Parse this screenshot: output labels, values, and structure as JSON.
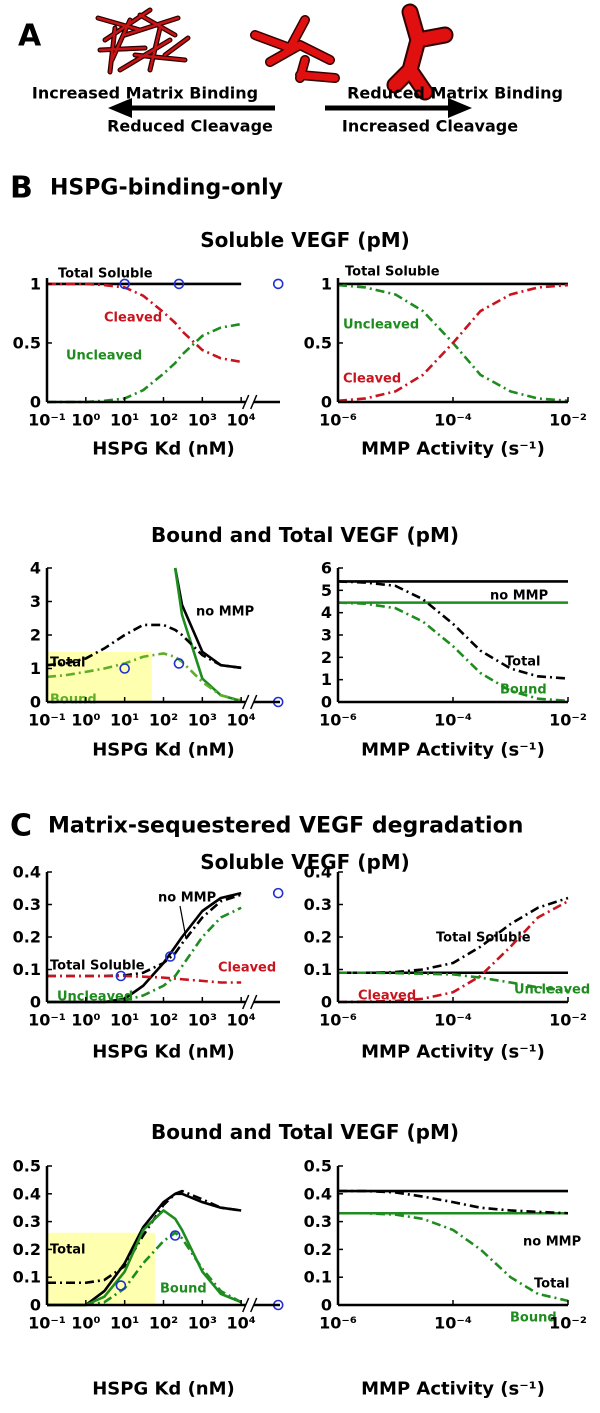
{
  "panel_a": {
    "label": "A",
    "left_top": "Increased Matrix Binding",
    "left_bottom": "Reduced Cleavage",
    "right_top": "Reduced Matrix Binding",
    "right_bottom": "Increased Cleavage"
  },
  "panel_b": {
    "label": "B",
    "title": "HSPG-binding-only",
    "row_titles": [
      "Soluble VEGF (pM)",
      "Bound and Total VEGF (pM)"
    ]
  },
  "panel_c": {
    "label": "C",
    "title": "Matrix-sequestered VEGF degradation",
    "row_titles": [
      "Soluble VEGF (pM)",
      "Bound and Total VEGF (pM)"
    ]
  },
  "chart_data": [
    {
      "type": "line",
      "xlabel": "HSPG Kd (nM)",
      "xscale": "log",
      "x_axis_break": true,
      "xlim": [
        0.1,
        100000
      ],
      "ylim": [
        0,
        1.05
      ],
      "yticks": [
        0,
        0.5,
        1
      ],
      "xticks": [
        {
          "value": 0.1,
          "label": "10⁻¹"
        },
        {
          "value": 1,
          "label": "10⁰"
        },
        {
          "value": 10,
          "label": "10¹"
        },
        {
          "value": 100,
          "label": "10²"
        },
        {
          "value": 1000,
          "label": "10³"
        },
        {
          "value": 10000,
          "label": "10⁴"
        }
      ],
      "x": [
        0.1,
        0.3,
        1,
        3,
        10,
        30,
        100,
        200,
        300,
        1000,
        3000,
        10000,
        30000,
        90000
      ],
      "series": [
        {
          "name": "Total Soluble",
          "color": "#000000",
          "style": "solid",
          "values": [
            1,
            1,
            1,
            1,
            1,
            1,
            1,
            1,
            1,
            1,
            1,
            1,
            null,
            1
          ]
        },
        {
          "name": "Cleaved",
          "color": "#c8141e",
          "style": "dashdot",
          "values": [
            1,
            1,
            1,
            0.99,
            0.97,
            0.9,
            0.76,
            0.67,
            0.6,
            0.44,
            0.37,
            0.34,
            null,
            null
          ]
        },
        {
          "name": "Uncleaved",
          "color": "#1e8c1e",
          "style": "dashdot",
          "values": [
            0,
            0,
            0,
            0.01,
            0.03,
            0.1,
            0.24,
            0.33,
            0.4,
            0.56,
            0.63,
            0.66,
            null,
            null
          ]
        },
        {
          "color": "#2030d0",
          "marker": "circle",
          "x": [
            10,
            250,
            90000
          ],
          "values": [
            1,
            1,
            1
          ]
        }
      ]
    },
    {
      "type": "line",
      "xlabel": "MMP Activity (s⁻¹)",
      "xscale": "log",
      "xlim": [
        1e-06,
        0.01
      ],
      "ylim": [
        0,
        1.05
      ],
      "yticks": [
        0,
        0.5,
        1
      ],
      "xticks": [
        {
          "value": 1e-06,
          "label": "10⁻⁶"
        },
        {
          "value": 0.0001,
          "label": "10⁻⁴"
        },
        {
          "value": 0.01,
          "label": "10⁻²"
        }
      ],
      "x": [
        1e-06,
        3e-06,
        1e-05,
        3e-05,
        0.0001,
        0.0003,
        0.001,
        0.003,
        0.01
      ],
      "series": [
        {
          "name": "Total Soluble",
          "color": "#000000",
          "style": "solid",
          "values": [
            1,
            1,
            1,
            1,
            1,
            1,
            1,
            1,
            1
          ]
        },
        {
          "name": "Uncleaved",
          "color": "#1e8c1e",
          "style": "dashdot",
          "values": [
            0.99,
            0.97,
            0.91,
            0.77,
            0.5,
            0.23,
            0.09,
            0.03,
            0.01
          ]
        },
        {
          "name": "Cleaved",
          "color": "#c8141e",
          "style": "dashdot",
          "values": [
            0.01,
            0.03,
            0.09,
            0.23,
            0.5,
            0.77,
            0.91,
            0.97,
            0.99
          ]
        }
      ]
    },
    {
      "type": "line",
      "xlabel": "HSPG Kd (nM)",
      "xscale": "log",
      "x_axis_break": true,
      "xlim": [
        0.1,
        100000
      ],
      "ylim": [
        0,
        4
      ],
      "yticks": [
        0,
        1,
        2,
        3,
        4
      ],
      "xticks": [
        {
          "value": 0.1,
          "label": "10⁻¹"
        },
        {
          "value": 1,
          "label": "10⁰"
        },
        {
          "value": 10,
          "label": "10¹"
        },
        {
          "value": 100,
          "label": "10²"
        },
        {
          "value": 1000,
          "label": "10³"
        },
        {
          "value": 10000,
          "label": "10⁴"
        }
      ],
      "highlight": {
        "x": [
          0.1,
          50
        ],
        "y": [
          0,
          1.5
        ],
        "color": "#ffffb0"
      },
      "x": [
        0.1,
        0.3,
        1,
        3,
        10,
        30,
        100,
        200,
        300,
        1000,
        3000,
        10000,
        30000,
        90000
      ],
      "series": [
        {
          "name": "no MMP",
          "color": "#000000",
          "style": "solid",
          "values": [
            null,
            null,
            null,
            null,
            null,
            null,
            null,
            4,
            2.9,
            1.5,
            1.1,
            1.02,
            null,
            null
          ]
        },
        {
          "color": "#1e8c1e",
          "style": "solid",
          "values": [
            null,
            null,
            null,
            null,
            null,
            null,
            null,
            4,
            2.6,
            0.7,
            0.2,
            0.03,
            null,
            null
          ]
        },
        {
          "name": "Total",
          "color": "#000000",
          "style": "dashdot",
          "values": [
            1.1,
            1.15,
            1.3,
            1.6,
            2,
            2.3,
            2.3,
            2.15,
            2,
            1.4,
            1.1,
            1.02,
            null,
            1
          ]
        },
        {
          "name": "Bound",
          "color": "#5fae28",
          "style": "dashdot",
          "values": [
            0.75,
            0.8,
            0.9,
            1,
            1.15,
            1.35,
            1.45,
            1.35,
            1.2,
            0.6,
            0.2,
            0.05,
            null,
            0
          ]
        },
        {
          "color": "#2030d0",
          "marker": "circle",
          "x": [
            10,
            250,
            90000
          ],
          "values": [
            1,
            1.15,
            0
          ]
        }
      ]
    },
    {
      "type": "line",
      "xlabel": "MMP Activity (s⁻¹)",
      "xscale": "log",
      "xlim": [
        1e-06,
        0.01
      ],
      "ylim": [
        0,
        6
      ],
      "yticks": [
        0,
        1,
        2,
        3,
        4,
        5,
        6
      ],
      "xticks": [
        {
          "value": 1e-06,
          "label": "10⁻⁶"
        },
        {
          "value": 0.0001,
          "label": "10⁻⁴"
        },
        {
          "value": 0.01,
          "label": "10⁻²"
        }
      ],
      "x": [
        1e-06,
        3e-06,
        1e-05,
        3e-05,
        0.0001,
        0.0003,
        0.001,
        0.003,
        0.01
      ],
      "series": [
        {
          "name": "no MMP",
          "color": "#000000",
          "style": "solid",
          "values": [
            5.4,
            5.4,
            5.4,
            5.4,
            5.4,
            5.4,
            5.4,
            5.4,
            5.4
          ]
        },
        {
          "color": "#1e8c1e",
          "style": "solid",
          "values": [
            4.45,
            4.45,
            4.45,
            4.45,
            4.45,
            4.45,
            4.45,
            4.45,
            4.45
          ]
        },
        {
          "name": "Total",
          "color": "#000000",
          "style": "dashdot",
          "values": [
            5.4,
            5.35,
            5.2,
            4.6,
            3.5,
            2.3,
            1.5,
            1.15,
            1.05
          ]
        },
        {
          "name": "Bound",
          "color": "#1e8c1e",
          "style": "dashdot",
          "values": [
            4.45,
            4.4,
            4.2,
            3.6,
            2.5,
            1.3,
            0.5,
            0.15,
            0.05
          ]
        }
      ]
    },
    {
      "type": "line",
      "xlabel": "HSPG Kd (nM)",
      "xscale": "log",
      "x_axis_break": true,
      "xlim": [
        0.1,
        100000
      ],
      "ylim": [
        0,
        0.4
      ],
      "yticks": [
        0,
        0.1,
        0.2,
        0.3,
        0.4
      ],
      "xticks": [
        {
          "value": 0.1,
          "label": "10⁻¹"
        },
        {
          "value": 1,
          "label": "10⁰"
        },
        {
          "value": 10,
          "label": "10¹"
        },
        {
          "value": 100,
          "label": "10²"
        },
        {
          "value": 1000,
          "label": "10³"
        },
        {
          "value": 10000,
          "label": "10⁴"
        }
      ],
      "x": [
        0.1,
        0.3,
        1,
        3,
        10,
        30,
        100,
        200,
        300,
        1000,
        3000,
        10000,
        30000,
        90000
      ],
      "series": [
        {
          "name": "no MMP",
          "color": "#000000",
          "style": "solid",
          "values": [
            0,
            0,
            0,
            0,
            0.01,
            0.05,
            0.12,
            0.17,
            0.2,
            0.28,
            0.32,
            0.335,
            null,
            0.335
          ]
        },
        {
          "name": "Total Soluble",
          "color": "#000000",
          "style": "dashdot",
          "values": [
            0.08,
            0.08,
            0.08,
            0.08,
            0.082,
            0.09,
            0.12,
            0.15,
            0.18,
            0.26,
            0.31,
            0.33,
            null,
            null
          ]
        },
        {
          "name": "Cleaved",
          "color": "#c8141e",
          "style": "dashdot",
          "values": [
            0.08,
            0.08,
            0.08,
            0.08,
            0.08,
            0.078,
            0.075,
            0.072,
            0.07,
            0.065,
            0.06,
            0.06,
            null,
            null
          ]
        },
        {
          "name": "Uncleaved",
          "color": "#1e8c1e",
          "style": "dashdot",
          "values": [
            0,
            0,
            0,
            0,
            0.005,
            0.02,
            0.05,
            0.08,
            0.11,
            0.2,
            0.26,
            0.29,
            null,
            0.295
          ]
        },
        {
          "color": "#2030d0",
          "marker": "circle",
          "x": [
            8,
            150,
            90000
          ],
          "values": [
            0.08,
            0.14,
            0.335
          ]
        }
      ]
    },
    {
      "type": "line",
      "xlabel": "MMP Activity (s⁻¹)",
      "xscale": "log",
      "xlim": [
        1e-06,
        0.01
      ],
      "ylim": [
        0,
        0.4
      ],
      "yticks": [
        0,
        0.1,
        0.2,
        0.3,
        0.4
      ],
      "xticks": [
        {
          "value": 1e-06,
          "label": "10⁻⁶"
        },
        {
          "value": 0.0001,
          "label": "10⁻⁴"
        },
        {
          "value": 0.01,
          "label": "10⁻²"
        }
      ],
      "x": [
        1e-06,
        3e-06,
        1e-05,
        3e-05,
        0.0001,
        0.0003,
        0.001,
        0.003,
        0.01
      ],
      "series": [
        {
          "color": "#000000",
          "style": "solid",
          "values": [
            0.09,
            0.09,
            0.09,
            0.09,
            0.09,
            0.09,
            0.09,
            0.09,
            0.09
          ]
        },
        {
          "name": "Total Soluble",
          "color": "#000000",
          "style": "dashdot",
          "values": [
            0.09,
            0.09,
            0.092,
            0.1,
            0.12,
            0.17,
            0.24,
            0.29,
            0.32
          ]
        },
        {
          "name": "Cleaved",
          "color": "#c8141e",
          "style": "dashdot",
          "values": [
            0,
            0.001,
            0.003,
            0.01,
            0.03,
            0.08,
            0.17,
            0.26,
            0.31
          ]
        },
        {
          "name": "Uncleaved",
          "color": "#1e8c1e",
          "style": "dashdot",
          "values": [
            0.09,
            0.09,
            0.089,
            0.087,
            0.085,
            0.075,
            0.06,
            0.045,
            0.035
          ]
        }
      ]
    },
    {
      "type": "line",
      "xlabel": "HSPG Kd (nM)",
      "xscale": "log",
      "x_axis_break": true,
      "xlim": [
        0.1,
        100000
      ],
      "ylim": [
        0,
        0.5
      ],
      "yticks": [
        0,
        0.1,
        0.2,
        0.3,
        0.4,
        0.5
      ],
      "xticks": [
        {
          "value": 0.1,
          "label": "10⁻¹"
        },
        {
          "value": 1,
          "label": "10⁰"
        },
        {
          "value": 10,
          "label": "10¹"
        },
        {
          "value": 100,
          "label": "10²"
        },
        {
          "value": 1000,
          "label": "10³"
        },
        {
          "value": 10000,
          "label": "10⁴"
        }
      ],
      "highlight": {
        "x": [
          0.1,
          60
        ],
        "y": [
          0,
          0.26
        ],
        "color": "#ffffb0"
      },
      "x": [
        0.1,
        0.3,
        1,
        3,
        10,
        30,
        100,
        200,
        300,
        1000,
        3000,
        10000,
        30000,
        90000
      ],
      "series": [
        {
          "color": "#000000",
          "style": "solid",
          "values": [
            0,
            0,
            0,
            0.05,
            0.15,
            0.28,
            0.37,
            0.4,
            0.4,
            0.37,
            0.35,
            0.34,
            null,
            0.34
          ]
        },
        {
          "name": "Total",
          "color": "#000000",
          "style": "dashdot",
          "values": [
            0.08,
            0.08,
            0.08,
            0.09,
            0.14,
            0.25,
            0.36,
            0.4,
            0.41,
            0.38,
            0.35,
            0.34,
            null,
            null
          ]
        },
        {
          "color": "#1e8c1e",
          "style": "solid",
          "values": [
            0,
            0,
            0,
            0.03,
            0.12,
            0.27,
            0.34,
            0.31,
            0.27,
            0.12,
            0.04,
            0.01,
            null,
            0
          ]
        },
        {
          "name": "Bound",
          "color": "#1e8c1e",
          "style": "dashdot",
          "values": [
            0,
            0,
            0,
            0.01,
            0.06,
            0.15,
            0.23,
            0.26,
            0.24,
            0.13,
            0.05,
            0.01,
            null,
            0
          ]
        },
        {
          "color": "#2030d0",
          "marker": "circle",
          "x": [
            8,
            200,
            90000
          ],
          "values": [
            0.07,
            0.25,
            0
          ]
        }
      ]
    },
    {
      "type": "line",
      "xlabel": "MMP Activity (s⁻¹)",
      "xscale": "log",
      "xlim": [
        1e-06,
        0.01
      ],
      "ylim": [
        0,
        0.5
      ],
      "yticks": [
        0,
        0.1,
        0.2,
        0.3,
        0.4,
        0.5
      ],
      "xticks": [
        {
          "value": 1e-06,
          "label": "10⁻⁶"
        },
        {
          "value": 0.0001,
          "label": "10⁻⁴"
        },
        {
          "value": 0.01,
          "label": "10⁻²"
        }
      ],
      "x": [
        1e-06,
        3e-06,
        1e-05,
        3e-05,
        0.0001,
        0.0003,
        0.001,
        0.003,
        0.01
      ],
      "series": [
        {
          "name": "no MMP",
          "color": "#000000",
          "style": "solid",
          "values": [
            0.41,
            0.41,
            0.41,
            0.41,
            0.41,
            0.41,
            0.41,
            0.41,
            0.41
          ]
        },
        {
          "color": "#1e8c1e",
          "style": "solid",
          "values": [
            0.33,
            0.33,
            0.33,
            0.33,
            0.33,
            0.33,
            0.33,
            0.33,
            0.33
          ]
        },
        {
          "name": "Total",
          "color": "#000000",
          "style": "dashdot",
          "values": [
            0.41,
            0.41,
            0.405,
            0.39,
            0.37,
            0.35,
            0.34,
            0.335,
            0.33
          ]
        },
        {
          "name": "Bound",
          "color": "#1e8c1e",
          "style": "dashdot",
          "values": [
            0.33,
            0.33,
            0.325,
            0.31,
            0.27,
            0.2,
            0.1,
            0.04,
            0.015
          ]
        }
      ]
    }
  ]
}
